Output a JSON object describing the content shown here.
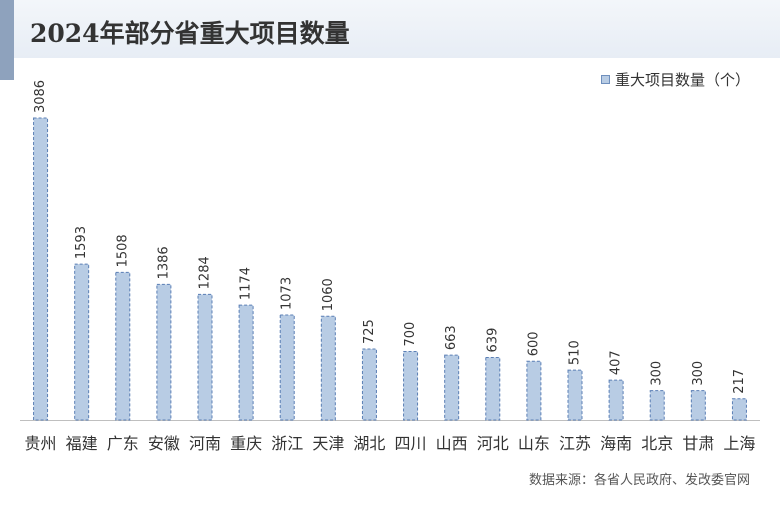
{
  "header": {
    "title": "2024年部分省重大项目数量"
  },
  "legend": {
    "label": "重大项目数量（个）"
  },
  "footer": {
    "source": "数据来源：各省人民政府、发改委官网"
  },
  "colors": {
    "bar_fill": "#b8cce4",
    "bar_stroke": "#5b7fb5",
    "axis": "#bfbfbf",
    "text": "#333333"
  },
  "chart_data": {
    "type": "bar",
    "title": "2024年部分省重大项目数量",
    "categories": [
      "贵州",
      "福建",
      "广东",
      "安徽",
      "河南",
      "重庆",
      "浙江",
      "天津",
      "湖北",
      "四川",
      "山西",
      "河北",
      "山东",
      "江苏",
      "海南",
      "北京",
      "甘肃",
      "上海"
    ],
    "series": [
      {
        "name": "重大项目数量（个）",
        "values": [
          3086,
          1593,
          1508,
          1386,
          1284,
          1174,
          1073,
          1060,
          725,
          700,
          663,
          639,
          600,
          510,
          407,
          300,
          300,
          217
        ]
      }
    ],
    "xlabel": "",
    "ylabel": "",
    "ylim": [
      0,
      3086
    ],
    "grid": false,
    "legend_position": "top-right",
    "data_labels": true
  }
}
